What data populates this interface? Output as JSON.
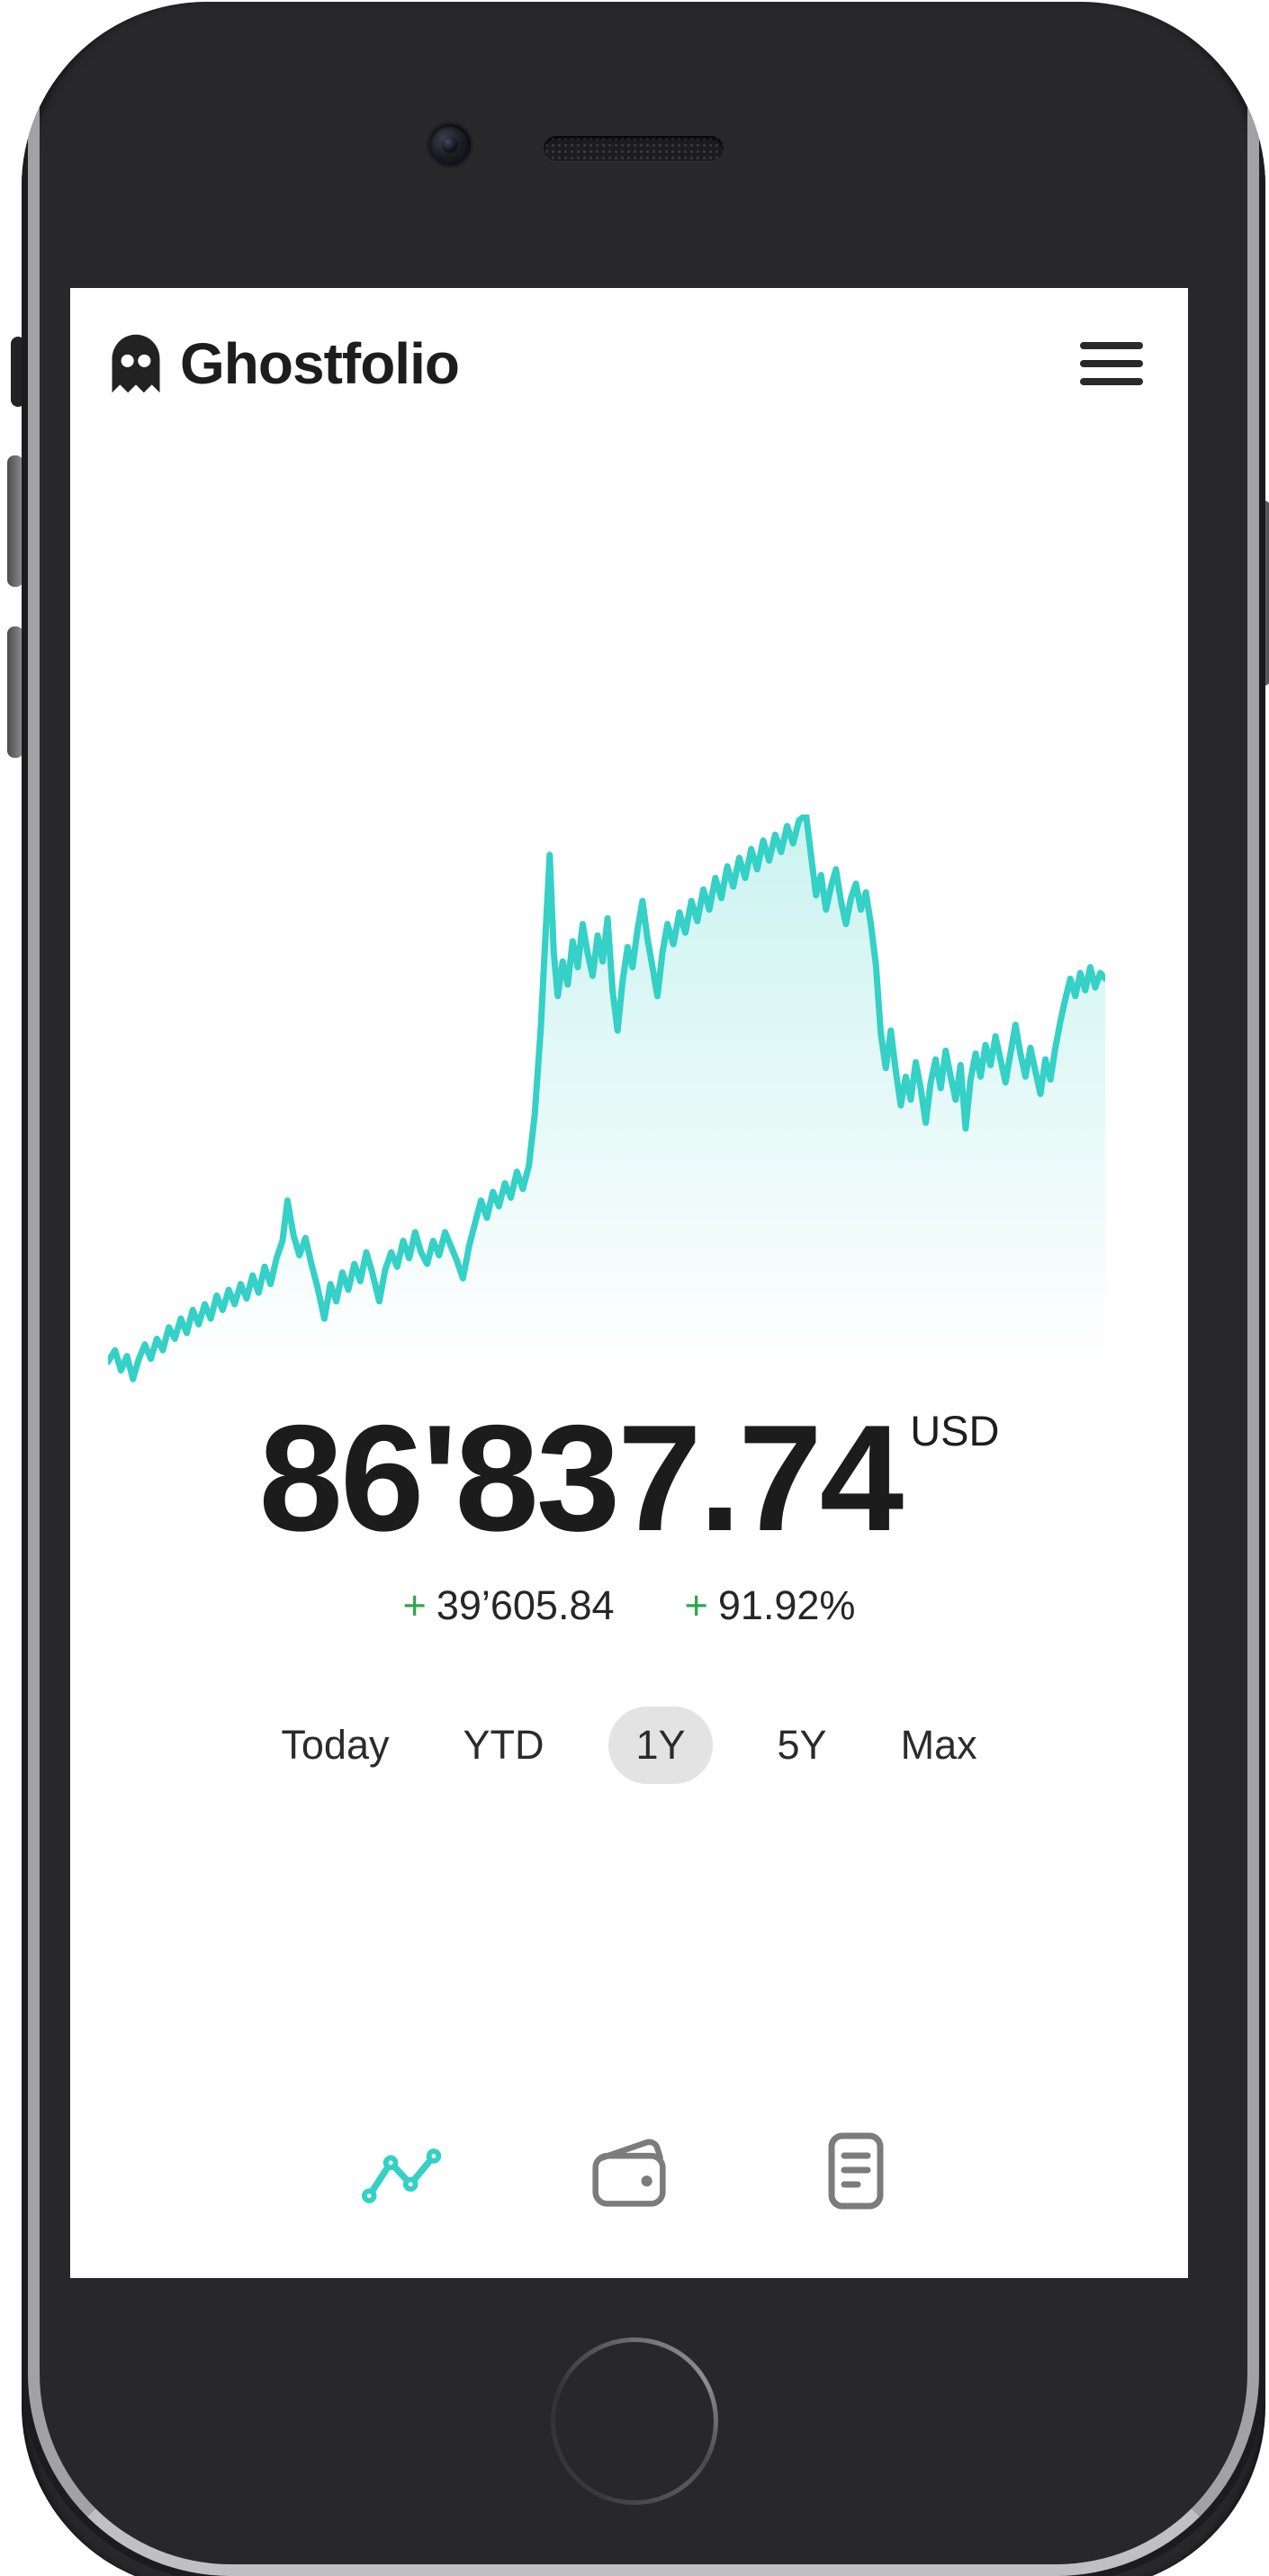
{
  "app": {
    "name": "Ghostfolio"
  },
  "chart_data": {
    "type": "area",
    "description": "1Y portfolio performance sparkline, no axes or gridlines, area fill fades to white at bottom",
    "range_selected": "1Y",
    "end_value": 86837.74,
    "line_color": "#35d0c6",
    "fill_top": "rgba(53,208,198,0.26)",
    "fill_bottom": "rgba(53,208,198,0)",
    "x_range": [
      0,
      100
    ],
    "y_range": [
      0,
      100
    ],
    "points": [
      [
        0,
        5
      ],
      [
        0.7,
        7
      ],
      [
        1.3,
        3.5
      ],
      [
        1.9,
        6
      ],
      [
        2.5,
        2
      ],
      [
        3.1,
        5.5
      ],
      [
        3.7,
        8
      ],
      [
        4.3,
        5.5
      ],
      [
        4.9,
        9
      ],
      [
        5.5,
        7
      ],
      [
        6.1,
        11
      ],
      [
        6.7,
        9
      ],
      [
        7.3,
        12.5
      ],
      [
        7.9,
        10
      ],
      [
        8.5,
        14
      ],
      [
        9.1,
        11.5
      ],
      [
        9.7,
        15
      ],
      [
        10.3,
        12.5
      ],
      [
        10.9,
        16.5
      ],
      [
        11.5,
        14
      ],
      [
        12.1,
        17.5
      ],
      [
        12.7,
        15
      ],
      [
        13.3,
        18.5
      ],
      [
        13.9,
        16
      ],
      [
        14.5,
        20
      ],
      [
        15.1,
        17
      ],
      [
        15.7,
        21.5
      ],
      [
        16.3,
        18.5
      ],
      [
        16.9,
        23
      ],
      [
        17.5,
        26
      ],
      [
        18,
        33
      ],
      [
        18.6,
        27
      ],
      [
        19.2,
        23.5
      ],
      [
        19.8,
        26.5
      ],
      [
        20.4,
        22
      ],
      [
        21,
        18
      ],
      [
        21.7,
        12.5
      ],
      [
        22.3,
        18.5
      ],
      [
        22.9,
        15.5
      ],
      [
        23.5,
        20.5
      ],
      [
        24.1,
        17.5
      ],
      [
        24.7,
        22
      ],
      [
        25.3,
        19
      ],
      [
        25.9,
        24
      ],
      [
        26.5,
        20.5
      ],
      [
        27.2,
        15.5
      ],
      [
        27.8,
        21
      ],
      [
        28.4,
        24
      ],
      [
        29,
        21.5
      ],
      [
        29.6,
        26
      ],
      [
        30.2,
        23
      ],
      [
        30.8,
        27.5
      ],
      [
        31.4,
        24
      ],
      [
        32,
        22
      ],
      [
        32.6,
        26
      ],
      [
        33.2,
        23.5
      ],
      [
        33.8,
        27.5
      ],
      [
        34.4,
        25
      ],
      [
        35,
        22.5
      ],
      [
        35.6,
        19.5
      ],
      [
        36.2,
        25
      ],
      [
        36.8,
        29
      ],
      [
        37.4,
        33
      ],
      [
        38,
        30
      ],
      [
        38.6,
        34.5
      ],
      [
        39.2,
        32
      ],
      [
        39.8,
        36
      ],
      [
        40.4,
        33.5
      ],
      [
        41,
        38
      ],
      [
        41.6,
        35
      ],
      [
        42.2,
        39
      ],
      [
        42.8,
        48
      ],
      [
        43.4,
        63
      ],
      [
        43.9,
        80
      ],
      [
        44.3,
        93
      ],
      [
        44.7,
        76
      ],
      [
        45.1,
        68.5
      ],
      [
        45.6,
        74.5
      ],
      [
        46.1,
        70.5
      ],
      [
        46.6,
        78
      ],
      [
        47.1,
        73.5
      ],
      [
        47.6,
        81
      ],
      [
        48.1,
        76
      ],
      [
        48.6,
        72
      ],
      [
        49.1,
        79
      ],
      [
        49.6,
        74.5
      ],
      [
        50.1,
        82
      ],
      [
        50.6,
        69.5
      ],
      [
        51.1,
        62.5
      ],
      [
        51.6,
        71
      ],
      [
        52.1,
        77
      ],
      [
        52.6,
        73.5
      ],
      [
        53.1,
        80
      ],
      [
        53.6,
        85
      ],
      [
        54.1,
        78.5
      ],
      [
        54.6,
        73.5
      ],
      [
        55.1,
        68.5
      ],
      [
        55.6,
        76
      ],
      [
        56.1,
        81
      ],
      [
        56.7,
        77.5
      ],
      [
        57.3,
        83
      ],
      [
        57.9,
        79.5
      ],
      [
        58.5,
        85
      ],
      [
        59.1,
        81.5
      ],
      [
        59.7,
        87
      ],
      [
        60.3,
        83.5
      ],
      [
        60.9,
        89
      ],
      [
        61.5,
        85.5
      ],
      [
        62.1,
        91
      ],
      [
        62.7,
        87.5
      ],
      [
        63.3,
        92.5
      ],
      [
        63.9,
        89
      ],
      [
        64.5,
        94
      ],
      [
        65.1,
        90.5
      ],
      [
        65.7,
        95.5
      ],
      [
        66.3,
        92
      ],
      [
        66.9,
        96.5
      ],
      [
        67.5,
        93.5
      ],
      [
        68.1,
        98
      ],
      [
        68.7,
        95
      ],
      [
        69.3,
        99
      ],
      [
        70,
        100
      ],
      [
        70.5,
        93
      ],
      [
        71,
        86
      ],
      [
        71.5,
        89.5
      ],
      [
        72,
        83.5
      ],
      [
        72.5,
        87.5
      ],
      [
        73,
        90.5
      ],
      [
        73.5,
        85
      ],
      [
        74,
        81
      ],
      [
        74.5,
        85.5
      ],
      [
        75,
        88
      ],
      [
        75.5,
        83.5
      ],
      [
        76,
        86.5
      ],
      [
        76.5,
        81
      ],
      [
        77,
        74
      ],
      [
        77.5,
        62
      ],
      [
        78,
        56
      ],
      [
        78.5,
        62.5
      ],
      [
        79,
        55.5
      ],
      [
        79.5,
        49.5
      ],
      [
        80,
        54.5
      ],
      [
        80.5,
        50.5
      ],
      [
        81,
        57
      ],
      [
        81.5,
        52.5
      ],
      [
        82,
        46.5
      ],
      [
        82.5,
        53.5
      ],
      [
        83,
        57.5
      ],
      [
        83.5,
        52.5
      ],
      [
        84,
        59
      ],
      [
        84.5,
        54.5
      ],
      [
        85,
        50.5
      ],
      [
        85.5,
        56.5
      ],
      [
        86,
        45.5
      ],
      [
        86.5,
        54
      ],
      [
        87,
        58.5
      ],
      [
        87.5,
        54.5
      ],
      [
        88,
        60
      ],
      [
        88.5,
        56.5
      ],
      [
        89,
        61.5
      ],
      [
        89.5,
        57.5
      ],
      [
        90,
        53.5
      ],
      [
        90.5,
        58.5
      ],
      [
        91,
        63.5
      ],
      [
        91.5,
        58.5
      ],
      [
        92,
        54.5
      ],
      [
        92.5,
        59.5
      ],
      [
        93,
        55.5
      ],
      [
        93.5,
        51.5
      ],
      [
        94,
        57.5
      ],
      [
        94.5,
        54
      ],
      [
        95,
        59.5
      ],
      [
        95.5,
        64
      ],
      [
        96,
        68
      ],
      [
        96.5,
        71.5
      ],
      [
        97,
        68.5
      ],
      [
        97.5,
        72.5
      ],
      [
        98,
        69.5
      ],
      [
        98.5,
        73.5
      ],
      [
        99,
        70
      ],
      [
        99.5,
        72.5
      ],
      [
        100,
        71.5
      ]
    ]
  },
  "summary": {
    "value": "86'837.74",
    "currency_label": "USD",
    "changes": [
      {
        "sign": "+",
        "value": "39’605.84"
      },
      {
        "sign": "+",
        "value": "91.92%"
      }
    ],
    "positive_color": "#2fa74c"
  },
  "range_selector": {
    "options": [
      {
        "label": "Today"
      },
      {
        "label": "YTD"
      },
      {
        "label": "1Y"
      },
      {
        "label": "5Y"
      },
      {
        "label": "Max"
      }
    ],
    "selected_index": 2
  },
  "bottom_nav": {
    "items": [
      {
        "icon": "line-chart-icon",
        "active": true
      },
      {
        "icon": "wallet-icon",
        "active": false
      },
      {
        "icon": "transactions-icon",
        "active": false
      }
    ],
    "active_color": "#35d0c6",
    "inactive_color": "#7c7c7c"
  }
}
